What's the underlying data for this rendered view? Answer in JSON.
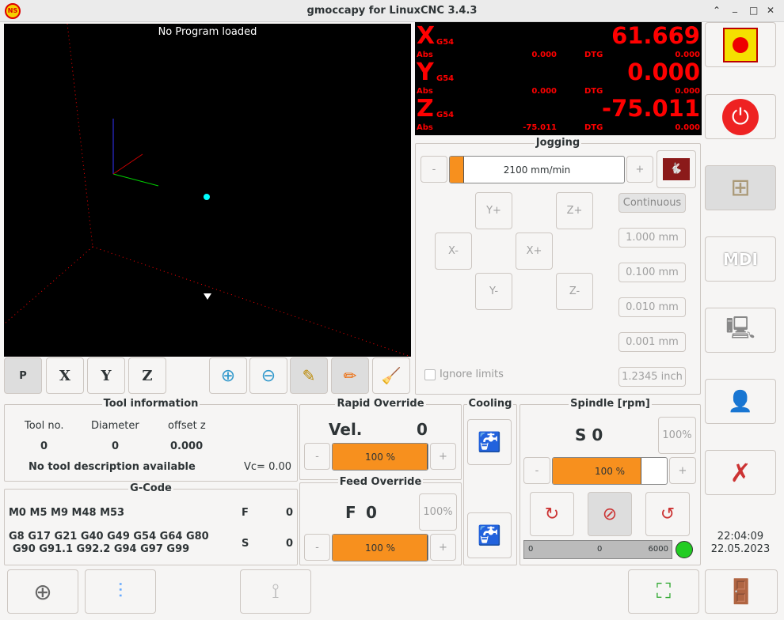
{
  "window": {
    "title": "gmoccapy for LinuxCNC  3.4.3",
    "logo": "LCNC",
    "controls": [
      "⌃",
      "_",
      "□",
      "✕"
    ]
  },
  "preview": {
    "title": "No Program loaded",
    "toolbar": [
      "P",
      "X",
      "Y",
      "Z"
    ]
  },
  "dro": {
    "axes": [
      {
        "letter": "X",
        "coord": "G54",
        "value": "61.669",
        "abs_label": "Abs",
        "abs": "0.000",
        "dtg_label": "DTG",
        "dtg": "0.000"
      },
      {
        "letter": "Y",
        "coord": "G54",
        "value": "0.000",
        "abs_label": "Abs",
        "abs": "0.000",
        "dtg_label": "DTG",
        "dtg": "0.000"
      },
      {
        "letter": "Z",
        "coord": "G54",
        "value": "-75.011",
        "abs_label": "Abs",
        "abs": "-75.011",
        "dtg_label": "DTG",
        "dtg": "0.000"
      }
    ]
  },
  "jogging": {
    "title": "Jogging",
    "minus": "-",
    "plus": "+",
    "speed": "2100 mm/min",
    "speed_fraction": 0.08,
    "buttons": {
      "yplus": "Y+",
      "zplus": "Z+",
      "xminus": "X-",
      "xplus": "X+",
      "yminus": "Y-",
      "zminus": "Z-"
    },
    "increments": [
      "Continuous",
      "1.000 mm",
      "0.100 mm",
      "0.010 mm",
      "0.001 mm",
      "1.2345 inch"
    ],
    "ignore_limits": "Ignore limits"
  },
  "tool": {
    "title": "Tool information",
    "headers": [
      "Tool no.",
      "Diameter",
      "offset z"
    ],
    "values": [
      "0",
      "0",
      "0.000"
    ],
    "description": "No tool description available",
    "vc": "Vc= 0.00"
  },
  "gcode": {
    "title": "G-Code",
    "mcodes": "M0 M5 M9 M48 M53",
    "gcodes1": "G8 G17 G21 G40 G49 G54 G64 G80",
    "gcodes2": "G90 G91.1 G92.2 G94 G97 G99",
    "f_label": "F",
    "f": "0",
    "s_label": "S",
    "s": "0"
  },
  "rapid": {
    "title": "Rapid Override",
    "vel_label": "Vel.",
    "vel": "0",
    "value": "100 %",
    "fraction": 1.0,
    "minus": "-",
    "plus": "+"
  },
  "feed": {
    "title": "Feed Override",
    "f_label": "F",
    "f": "0",
    "reset": "100%",
    "value": "100 %",
    "fraction": 1.0,
    "minus": "-",
    "plus": "+"
  },
  "cooling": {
    "title": "Cooling"
  },
  "spindle": {
    "title": "Spindle [rpm]",
    "s": "S 0",
    "reset": "100%",
    "value": "100 %",
    "fraction": 0.78,
    "minus": "-",
    "plus": "+",
    "gauge_min": "0",
    "gauge_val": "0",
    "gauge_max": "6000",
    "status_color": "#22cc22"
  },
  "clock": {
    "time": "22:04:09",
    "date": "22.05.2023"
  },
  "side": {
    "mdi": "MDI"
  },
  "colors": {
    "accent": "#f7901e",
    "dro": "#ff0000"
  }
}
